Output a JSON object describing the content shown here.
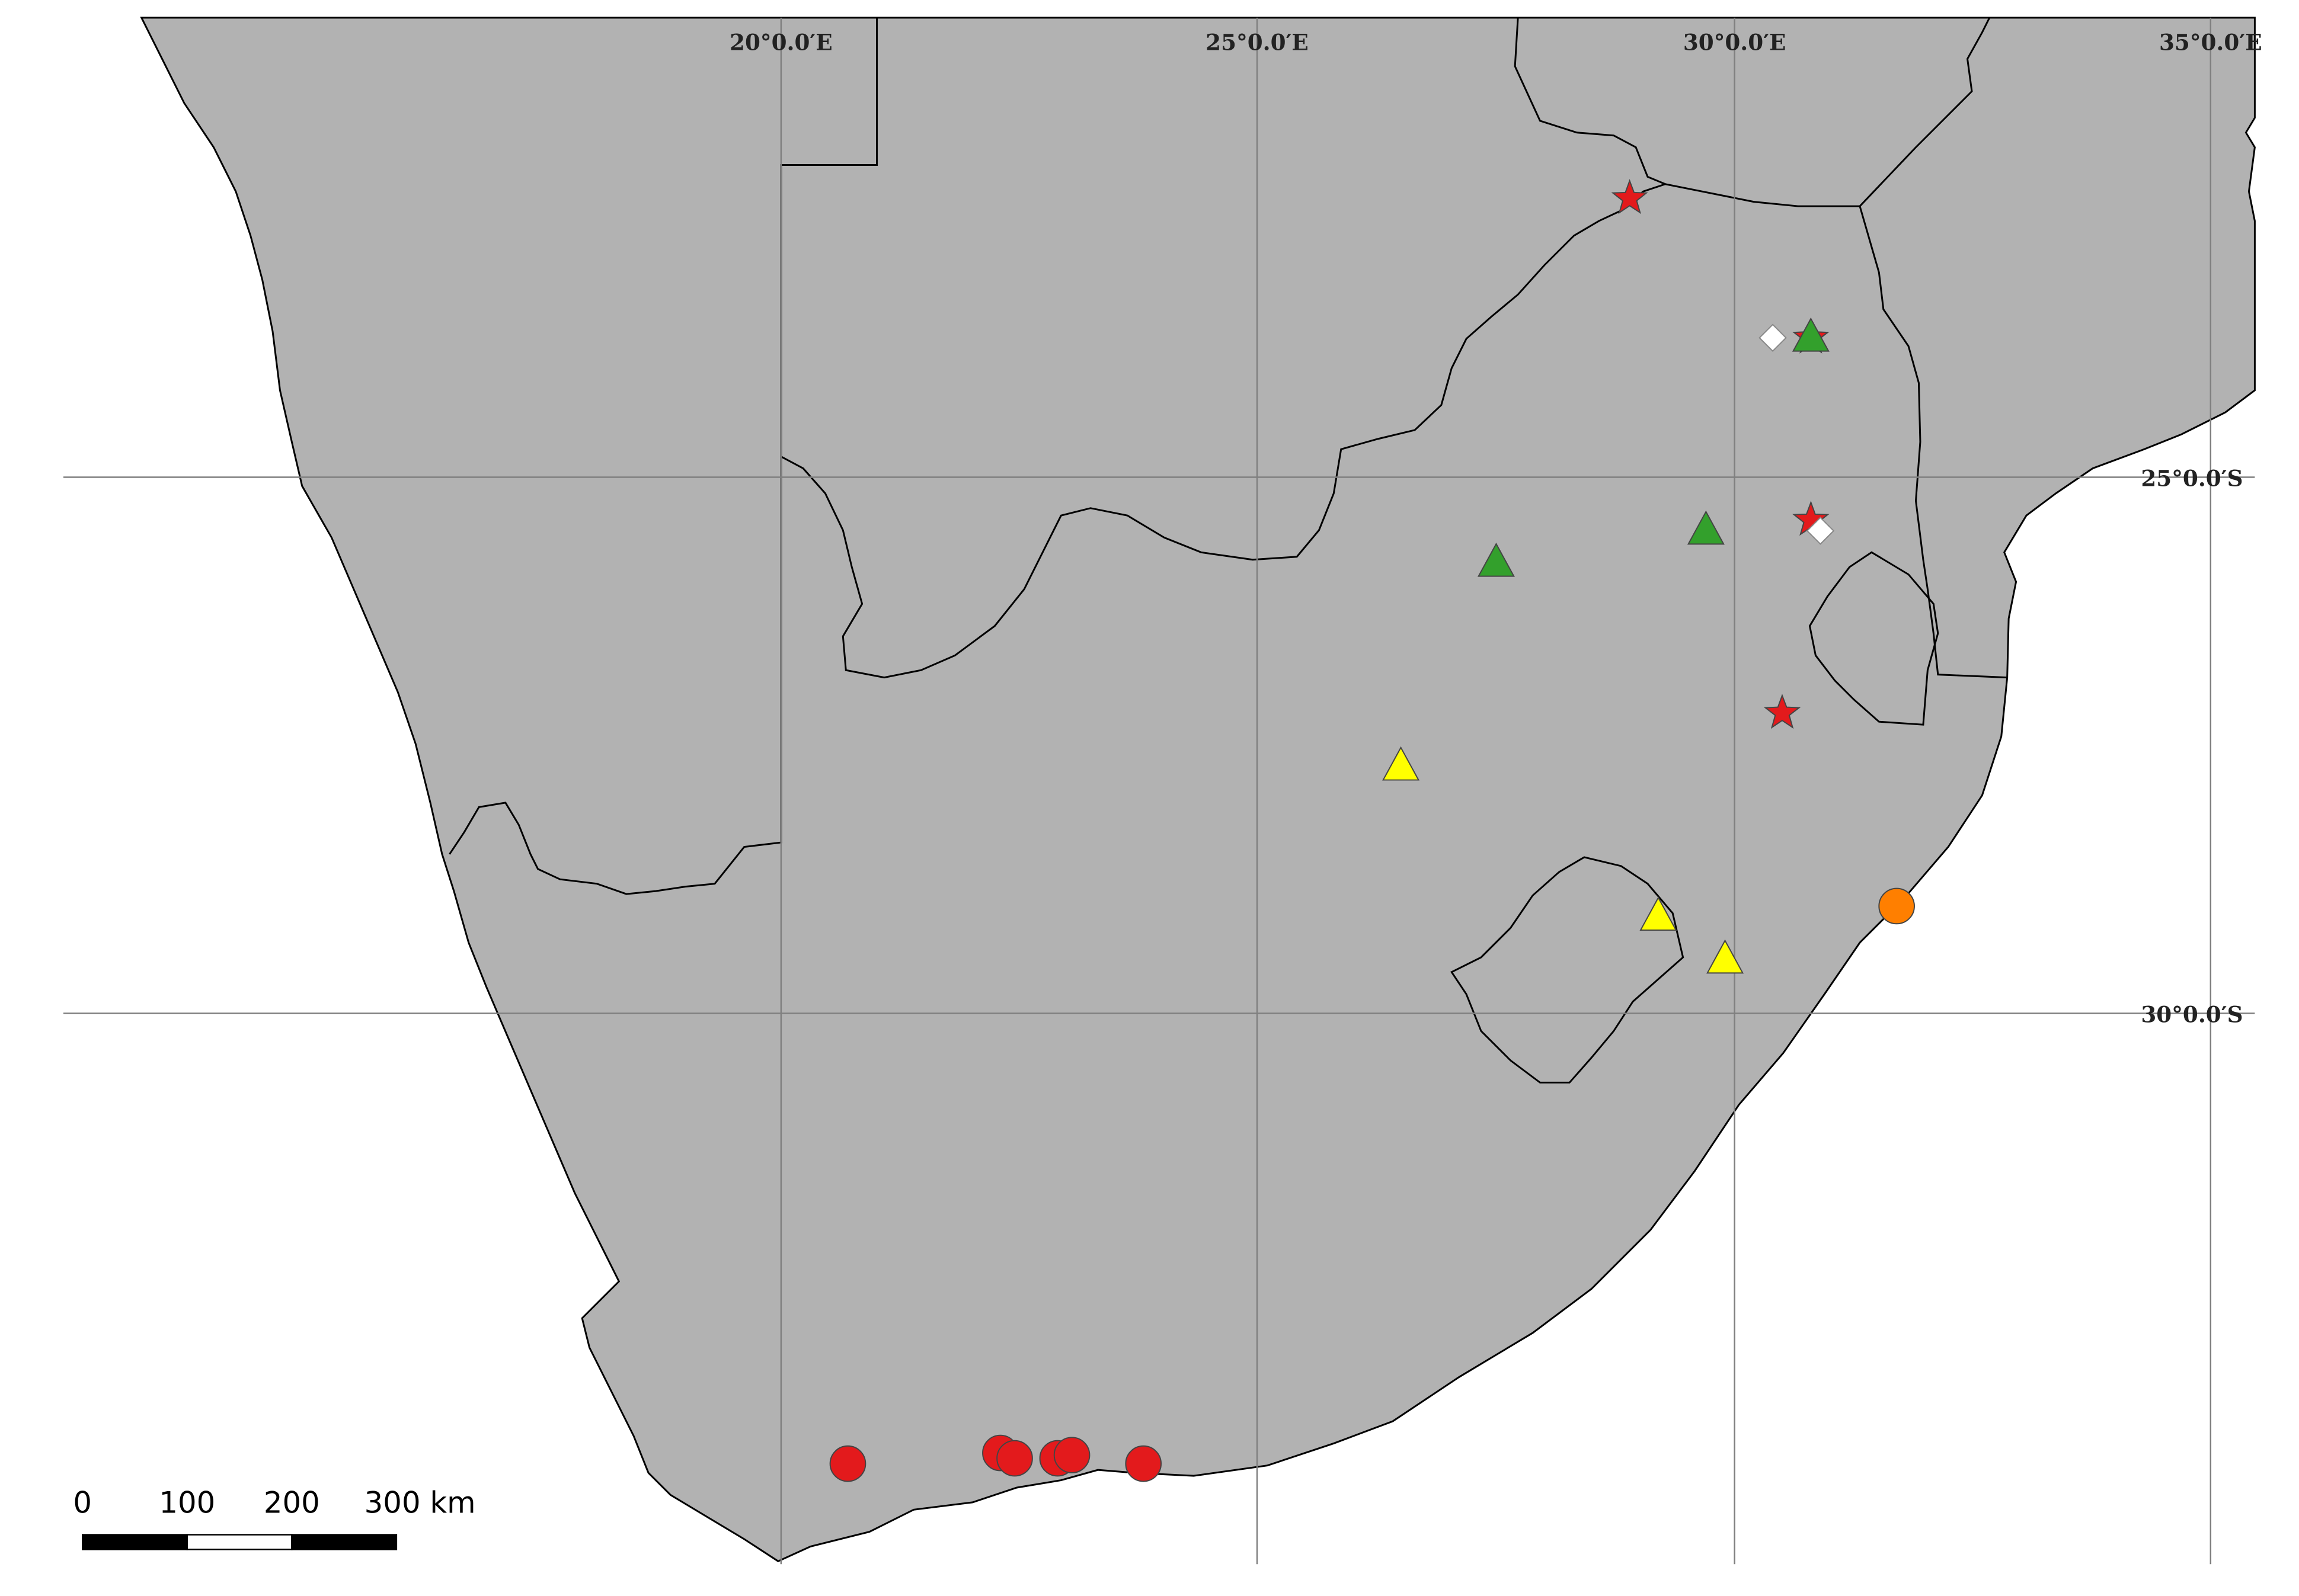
{
  "map": {
    "graticule_labels": {
      "lon": [
        "20°0.0′E",
        "25°0.0′E",
        "30°0.0′E",
        "35°0.0′E"
      ],
      "lat": [
        "25°0.0′S",
        "30°0.0′S"
      ]
    },
    "scale_bar": {
      "labels": [
        "0",
        "100",
        "200",
        "300 km"
      ]
    },
    "colors": {
      "land": "#b2b2b2",
      "border": "#000000",
      "grid": "#808080",
      "red": "#e31a1c",
      "green": "#33a02c",
      "yellow": "#ffff00",
      "orange": "#ff7f00",
      "white": "#ffffff"
    },
    "markers": [
      {
        "shape": "star",
        "color": "red",
        "lon": 28.9,
        "lat": -22.4
      },
      {
        "shape": "star",
        "color": "red",
        "lon": 30.8,
        "lat": -23.7
      },
      {
        "shape": "triangle",
        "color": "green",
        "lon": 30.8,
        "lat": -23.7
      },
      {
        "shape": "diamond",
        "color": "white",
        "lon": 30.4,
        "lat": -23.7
      },
      {
        "shape": "star",
        "color": "red",
        "lon": 30.8,
        "lat": -25.4
      },
      {
        "shape": "diamond",
        "color": "white",
        "lon": 30.9,
        "lat": -25.5
      },
      {
        "shape": "triangle",
        "color": "green",
        "lon": 29.7,
        "lat": -25.5
      },
      {
        "shape": "triangle",
        "color": "green",
        "lon": 27.5,
        "lat": -25.8
      },
      {
        "shape": "star",
        "color": "red",
        "lon": 30.5,
        "lat": -27.2
      },
      {
        "shape": "triangle",
        "color": "yellow",
        "lon": 26.5,
        "lat": -27.7
      },
      {
        "shape": "triangle",
        "color": "yellow",
        "lon": 29.2,
        "lat": -29.1
      },
      {
        "shape": "triangle",
        "color": "yellow",
        "lon": 29.9,
        "lat": -29.5
      },
      {
        "shape": "circle",
        "color": "orange",
        "lon": 31.7,
        "lat": -29.0
      },
      {
        "shape": "circle",
        "color": "red",
        "lon": 20.7,
        "lat": -34.2
      },
      {
        "shape": "circle",
        "color": "red",
        "lon": 22.3,
        "lat": -34.1
      },
      {
        "shape": "circle",
        "color": "red",
        "lon": 22.45,
        "lat": -34.15
      },
      {
        "shape": "circle",
        "color": "red",
        "lon": 22.9,
        "lat": -34.15
      },
      {
        "shape": "circle",
        "color": "red",
        "lon": 23.05,
        "lat": -34.12
      },
      {
        "shape": "circle",
        "color": "red",
        "lon": 23.8,
        "lat": -34.2
      }
    ]
  }
}
